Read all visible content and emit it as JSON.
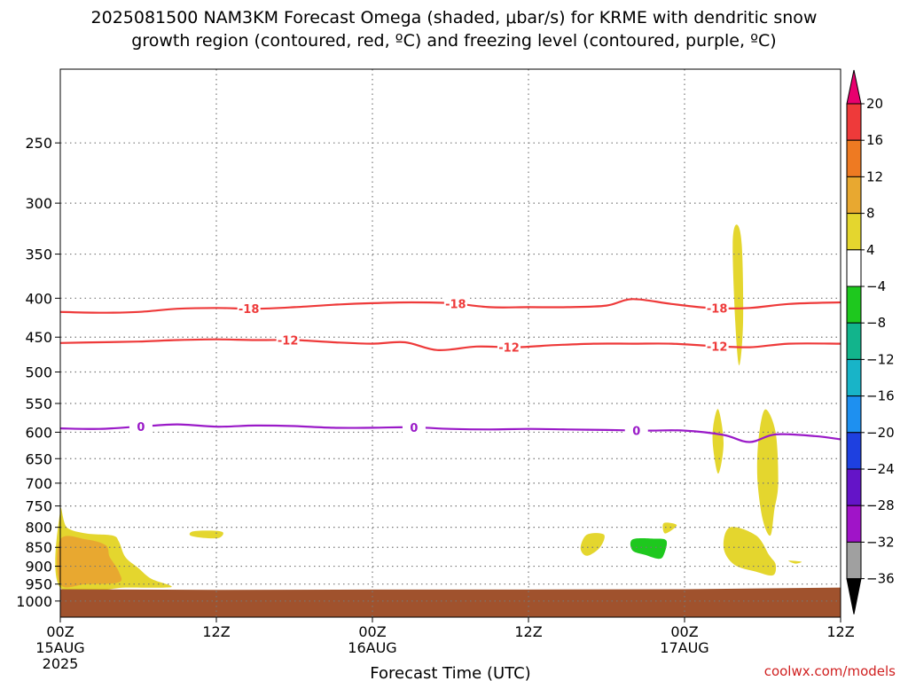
{
  "chart_data": {
    "type": "contour",
    "title_line1": "2025081500 NAM3KM Forecast Omega (shaded, μbar/s) for KRME with dendritic snow",
    "title_line2": "growth region (contoured, red, ºC) and freezing level (contoured, purple, ºC)",
    "xlabel": "Forecast Time (UTC)",
    "credit": "coolwx.com/models",
    "x_ticks": [
      {
        "hour": 0,
        "label": "00Z",
        "sub1": "15AUG",
        "sub2": "2025"
      },
      {
        "hour": 12,
        "label": "12Z",
        "sub1": "",
        "sub2": ""
      },
      {
        "hour": 24,
        "label": "00Z",
        "sub1": "16AUG",
        "sub2": ""
      },
      {
        "hour": 36,
        "label": "12Z",
        "sub1": "",
        "sub2": ""
      },
      {
        "hour": 48,
        "label": "00Z",
        "sub1": "17AUG",
        "sub2": ""
      },
      {
        "hour": 60,
        "label": "12Z",
        "sub1": "",
        "sub2": ""
      }
    ],
    "xlim": [
      0,
      60
    ],
    "y_ticks": [
      250,
      300,
      350,
      400,
      450,
      500,
      550,
      600,
      650,
      700,
      750,
      800,
      850,
      900,
      950,
      1000
    ],
    "ylim": [
      1050,
      200
    ],
    "y_scale": "log-pressure",
    "grid": true,
    "colorbar": {
      "labels": [
        "20",
        "16",
        "12",
        "8",
        "4",
        "−4",
        "−8",
        "−12",
        "−16",
        "−20",
        "−24",
        "−28",
        "−32",
        "−36"
      ],
      "colors": [
        "#e8006e",
        "#ee3a3a",
        "#ee7a22",
        "#e8a830",
        "#e4d62e",
        "#ffffff",
        "#1ec81e",
        "#12b48c",
        "#18b4c8",
        "#1e90f0",
        "#1e40e0",
        "#6414c8",
        "#a014c8",
        "#a0a0a0",
        "#000000"
      ]
    },
    "series": [
      {
        "name": "-18",
        "color": "#ee3a3a",
        "points": [
          [
            0,
            417
          ],
          [
            3,
            418
          ],
          [
            6,
            417
          ],
          [
            9,
            413
          ],
          [
            12,
            412
          ],
          [
            15,
            413
          ],
          [
            18,
            411
          ],
          [
            21,
            408
          ],
          [
            24,
            406
          ],
          [
            27,
            405
          ],
          [
            30,
            406
          ],
          [
            33,
            411
          ],
          [
            36,
            411
          ],
          [
            39,
            411
          ],
          [
            42,
            409
          ],
          [
            44,
            401
          ],
          [
            47,
            407
          ],
          [
            50,
            412
          ],
          [
            53,
            412
          ],
          [
            56,
            407
          ],
          [
            60,
            405
          ]
        ],
        "labels_at": [
          14.5,
          30.4,
          50.5
        ]
      },
      {
        "name": "-12",
        "color": "#ee3a3a",
        "points": [
          [
            0,
            458
          ],
          [
            3,
            457
          ],
          [
            6,
            456
          ],
          [
            9,
            454
          ],
          [
            12,
            453
          ],
          [
            15,
            454
          ],
          [
            18,
            454
          ],
          [
            21,
            457
          ],
          [
            24,
            459
          ],
          [
            26.5,
            457
          ],
          [
            29,
            468
          ],
          [
            32,
            463
          ],
          [
            35,
            464
          ],
          [
            38,
            461
          ],
          [
            41,
            459
          ],
          [
            44,
            459
          ],
          [
            47,
            459
          ],
          [
            50,
            462
          ],
          [
            53,
            464
          ],
          [
            56,
            459
          ],
          [
            60,
            459
          ]
        ],
        "labels_at": [
          17.5,
          34.5,
          50.5
        ]
      },
      {
        "name": "0",
        "color": "#9a1ac8",
        "points": [
          [
            0,
            593
          ],
          [
            3,
            594
          ],
          [
            6,
            590
          ],
          [
            9,
            586
          ],
          [
            12,
            590
          ],
          [
            15,
            588
          ],
          [
            18,
            589
          ],
          [
            21,
            592
          ],
          [
            24,
            592
          ],
          [
            27,
            591
          ],
          [
            30,
            594
          ],
          [
            33,
            595
          ],
          [
            36,
            594
          ],
          [
            39,
            595
          ],
          [
            42,
            596
          ],
          [
            45,
            597
          ],
          [
            48,
            597
          ],
          [
            51,
            605
          ],
          [
            53,
            618
          ],
          [
            55,
            604
          ],
          [
            58,
            607
          ],
          [
            60,
            613
          ]
        ],
        "labels_at": [
          6.2,
          27.2,
          44.3
        ]
      }
    ],
    "shaded_regions": [
      {
        "level": "4 to 8",
        "color": "#e4d62e",
        "points": [
          [
            0,
            760
          ],
          [
            0.5,
            800
          ],
          [
            2,
            815
          ],
          [
            4,
            820
          ],
          [
            4.5,
            835
          ],
          [
            5,
            875
          ],
          [
            6,
            905
          ],
          [
            7,
            935
          ],
          [
            8.5,
            955
          ],
          [
            8,
            960
          ],
          [
            5,
            960
          ],
          [
            0,
            960
          ]
        ]
      },
      {
        "level": "8 to 12",
        "color": "#e8a830",
        "points": [
          [
            0,
            830
          ],
          [
            2,
            830
          ],
          [
            3.5,
            845
          ],
          [
            3.8,
            875
          ],
          [
            4.5,
            915
          ],
          [
            4.5,
            945
          ],
          [
            2,
            950
          ],
          [
            0,
            950
          ]
        ]
      },
      {
        "level": "4 to 8",
        "color": "#e4d62e",
        "points": [
          [
            10.2,
            810
          ],
          [
            11.5,
            808
          ],
          [
            12.5,
            812
          ],
          [
            12.2,
            826
          ],
          [
            11,
            826
          ],
          [
            10,
            820
          ]
        ]
      },
      {
        "level": "4 to 8",
        "color": "#e4d62e",
        "points": [
          [
            40.5,
            818
          ],
          [
            41.8,
            818
          ],
          [
            41.5,
            850
          ],
          [
            40.5,
            872
          ],
          [
            40,
            852
          ]
        ]
      },
      {
        "level": "-4 to -8",
        "color": "#1ec81e",
        "points": [
          [
            44,
            830
          ],
          [
            45.6,
            828
          ],
          [
            46.6,
            833
          ],
          [
            46.4,
            870
          ],
          [
            46,
            880
          ],
          [
            45,
            870
          ],
          [
            44,
            858
          ]
        ]
      },
      {
        "level": "4 to 8",
        "color": "#e4d62e",
        "points": [
          [
            46.4,
            790
          ],
          [
            47.4,
            795
          ],
          [
            46.5,
            815
          ]
        ]
      },
      {
        "level": "4 to 8",
        "color": "#e4d62e",
        "points": [
          [
            51.5,
            800
          ],
          [
            53.5,
            820
          ],
          [
            54.5,
            870
          ],
          [
            55,
            895
          ],
          [
            54.8,
            925
          ],
          [
            53.5,
            915
          ],
          [
            51.8,
            895
          ],
          [
            51,
            850
          ]
        ]
      },
      {
        "level": "4 to 8",
        "color": "#e4d62e",
        "points": [
          [
            52,
            320
          ],
          [
            52.4,
            340
          ],
          [
            52.5,
            430
          ],
          [
            52.2,
            490
          ],
          [
            51.9,
            430
          ],
          [
            51.7,
            340
          ]
        ]
      },
      {
        "level": "4 to 8",
        "color": "#e4d62e",
        "points": [
          [
            50.6,
            560
          ],
          [
            51,
            620
          ],
          [
            50.6,
            680
          ],
          [
            50.2,
            630
          ],
          [
            50.2,
            590
          ]
        ]
      },
      {
        "level": "4 to 8",
        "color": "#e4d62e",
        "points": [
          [
            54.2,
            560
          ],
          [
            55,
            600
          ],
          [
            55.2,
            700
          ],
          [
            54.9,
            760
          ],
          [
            54.6,
            820
          ],
          [
            54,
            780
          ],
          [
            53.6,
            690
          ],
          [
            53.7,
            610
          ]
        ]
      },
      {
        "level": "4 to 8",
        "color": "#e4d62e",
        "points": [
          [
            56,
            885
          ],
          [
            57,
            888
          ],
          [
            56.5,
            893
          ]
        ]
      }
    ],
    "terrain": {
      "color": "#a0522d",
      "top_pressure": [
        [
          0,
          965
        ],
        [
          12,
          967
        ],
        [
          24,
          966
        ],
        [
          36,
          966
        ],
        [
          48,
          965
        ],
        [
          60,
          960
        ]
      ]
    }
  }
}
